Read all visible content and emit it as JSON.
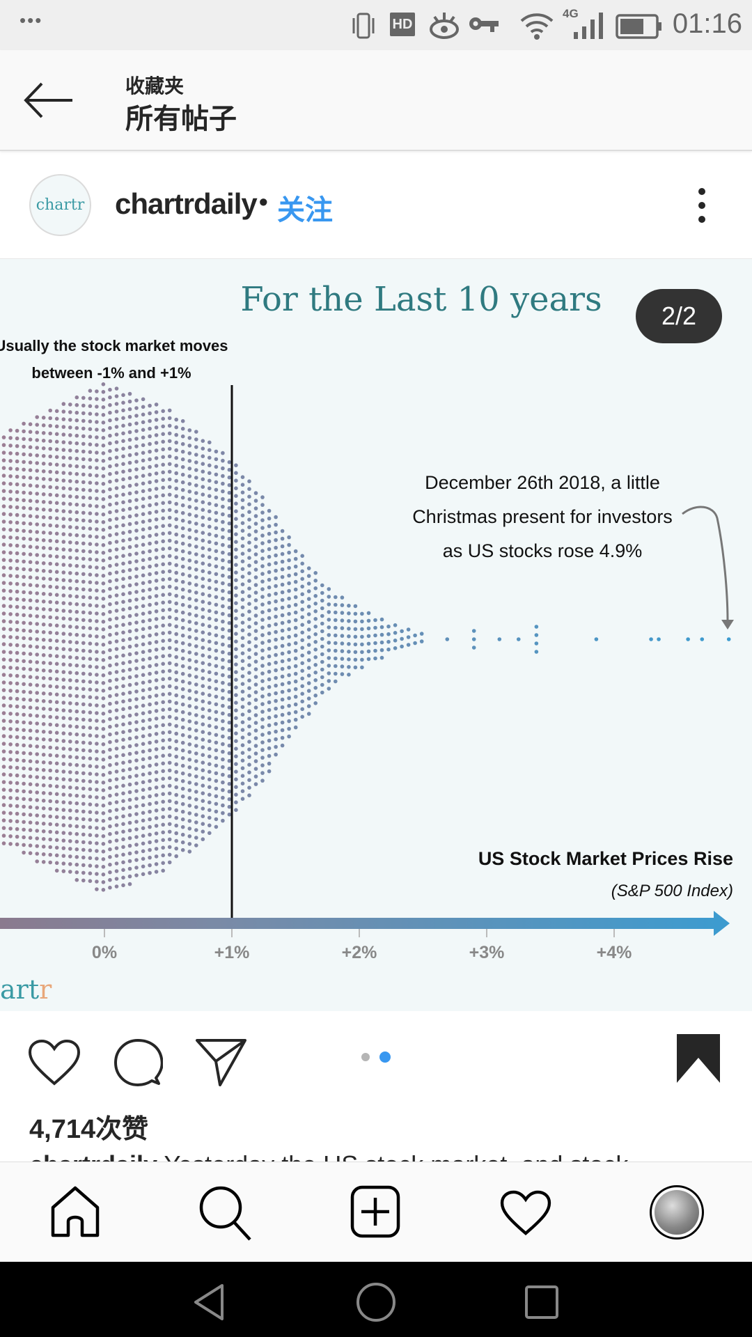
{
  "status_bar": {
    "menu": "•••",
    "hd": "HD",
    "network": "4G",
    "time": "01:16"
  },
  "header": {
    "subtitle": "收藏夹",
    "title": "所有帖子"
  },
  "post": {
    "avatar_text": "chartr",
    "username": "chartrdaily",
    "separator": "•",
    "follow_label": "关注",
    "page_badge": "2/2",
    "likes": "4,714次赞",
    "caption_user": "chartrdaily",
    "caption_text": "Yesterday the US stock market, and stock"
  },
  "chart_data": {
    "type": "scatter",
    "subtype": "beeswarm",
    "title": "For the Last 10 years",
    "xlabel": "US Stock Market Prices Rise",
    "xlabel_sub": "(S&P 500 Index)",
    "ylabel": "",
    "xlim": [
      -0.82,
      5.0
    ],
    "x_ticks": [
      0,
      1,
      2,
      3,
      4
    ],
    "x_tick_labels": [
      "0%",
      "+1%",
      "+2%",
      "+3%",
      "+4%"
    ],
    "reference_line_x": 1,
    "annotation_left": [
      "Usually the stock market moves",
      "between -1% and +1%"
    ],
    "annotation_right": [
      "December 26th 2018, a little",
      "Christmas present for investors",
      "as US stocks rose 4.9%"
    ],
    "highlight_value": 4.9,
    "density_profile": {
      "x": [
        -0.85,
        0,
        0.5,
        1,
        1.25,
        1.5,
        1.75,
        2,
        2.25,
        2.5
      ],
      "relative_count": [
        0.79,
        1,
        0.9,
        0.7,
        0.55,
        0.36,
        0.2,
        0.12,
        0.06,
        0.02
      ]
    },
    "outliers": [
      2.69,
      2.9,
      2.9,
      2.9,
      3.1,
      3.25,
      3.39,
      3.39,
      3.39,
      3.39,
      3.86,
      4.29,
      4.35,
      4.58,
      4.69,
      4.9
    ],
    "colors": {
      "low": "#9b7e94",
      "high": "#3d9bcf",
      "title": "#2f7a80"
    },
    "brand": "artr"
  },
  "colors": {
    "accent": "#3897f0",
    "active_dot": "#3897f0",
    "inactive_dot": "#b5b5b5"
  }
}
